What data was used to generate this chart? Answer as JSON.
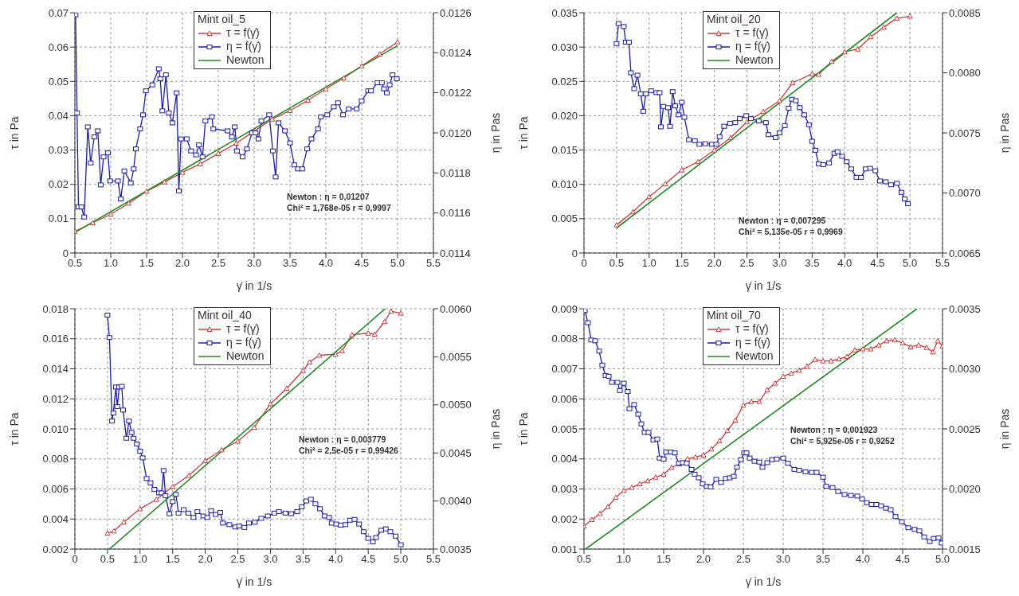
{
  "chart_data": [
    {
      "type": "line",
      "legend_title": "Mint oil_5",
      "xlabel": "γ̇ in 1/s",
      "ylabel": "τ in Pa",
      "y2label": "η in Pas",
      "grid": true,
      "legend": "top",
      "xlim": [
        0.5,
        5.5
      ],
      "xticks": [
        0.5,
        {
          "value": 1,
          "label": "1.0"
        },
        1.5,
        {
          "value": 2,
          "label": "2.0"
        },
        2.5,
        {
          "value": 3,
          "label": "3.0"
        },
        3.5,
        {
          "value": 4,
          "label": "4.0"
        },
        4.5,
        {
          "value": 5,
          "label": "5.0"
        },
        5.5
      ],
      "ylim": [
        0,
        0.07
      ],
      "yticks": [
        0,
        0.01,
        0.02,
        0.03,
        0.04,
        0.05,
        0.06,
        0.07
      ],
      "y2lim": [
        0.0114,
        0.0126
      ],
      "y2ticks": [
        0.0114,
        0.0116,
        0.0118,
        {
          "value": 0.012,
          "label": "0.0120"
        },
        0.0122,
        0.0124,
        0.0126
      ],
      "annotations": [
        "Newton : η = 0,01207",
        "Chi² = 1,768e-05 r = 0,9997"
      ],
      "series": [
        {
          "name": "τ = f(γ̇)",
          "color": "#d03a3a",
          "marker": "triangle",
          "x": [
            0.5,
            0.75,
            1.0,
            1.25,
            1.5,
            1.75,
            2.0,
            2.25,
            2.5,
            2.75,
            3.0,
            3.25,
            3.5,
            3.75,
            4.0,
            4.25,
            4.5,
            4.75,
            5.0
          ],
          "values": [
            0.0063,
            0.0088,
            0.0113,
            0.0145,
            0.018,
            0.0207,
            0.0235,
            0.026,
            0.029,
            0.032,
            0.0355,
            0.039,
            0.0415,
            0.0445,
            0.0478,
            0.051,
            0.0545,
            0.058,
            0.0615
          ]
        },
        {
          "name": "η = f(γ̇)",
          "color": "#1c1ca8",
          "marker": "square",
          "axis": "y2",
          "x": [
            0.51,
            0.53,
            0.55,
            0.59,
            0.63,
            0.68,
            0.72,
            0.77,
            0.82,
            0.86,
            0.9,
            0.96,
            0.99,
            1.1,
            1.14,
            1.19,
            1.28,
            1.32,
            1.35,
            1.41,
            1.45,
            1.49,
            1.58,
            1.67,
            1.69,
            1.72,
            1.77,
            1.81,
            1.86,
            1.92,
            1.95,
            1.98,
            2.06,
            2.12,
            2.19,
            2.23,
            2.28,
            2.32,
            2.41,
            2.43,
            2.63,
            2.69,
            2.73,
            2.76,
            2.84,
            2.9,
            2.97,
            3.02,
            3.06,
            3.1,
            3.21,
            3.26,
            3.3,
            3.34,
            3.43,
            3.5,
            3.56,
            3.61,
            3.67,
            3.74,
            3.8,
            3.89,
            3.93,
            4.02,
            4.11,
            4.17,
            4.24,
            4.32,
            4.43,
            4.5,
            4.59,
            4.63,
            4.72,
            4.78,
            4.81,
            4.85,
            4.89,
            4.93,
            4.99
          ],
          "values": [
            0.01259,
            0.0121,
            0.01163,
            0.01163,
            0.01158,
            0.01203,
            0.01185,
            0.01198,
            0.01201,
            0.01174,
            0.01188,
            0.0119,
            0.01176,
            0.01176,
            0.01167,
            0.01181,
            0.01175,
            0.01182,
            0.01192,
            0.01202,
            0.01209,
            0.01221,
            0.01224,
            0.01232,
            0.01227,
            0.01211,
            0.01229,
            0.0121,
            0.01205,
            0.0122,
            0.01171,
            0.01197,
            0.01197,
            0.01191,
            0.01189,
            0.01194,
            0.01188,
            0.01206,
            0.01208,
            0.01202,
            0.01201,
            0.01198,
            0.01203,
            0.01191,
            0.01188,
            0.01192,
            0.012,
            0.012,
            0.01197,
            0.01206,
            0.01209,
            0.01191,
            0.01178,
            0.01205,
            0.01201,
            0.01195,
            0.01184,
            0.01182,
            0.01182,
            0.01192,
            0.01197,
            0.01202,
            0.01208,
            0.01209,
            0.01213,
            0.01215,
            0.01209,
            0.01212,
            0.01212,
            0.01216,
            0.01221,
            0.01221,
            0.01225,
            0.01225,
            0.01222,
            0.0122,
            0.01224,
            0.01229,
            0.01227
          ]
        },
        {
          "name": "Newton",
          "color": "#1f8a1f",
          "marker": "none",
          "x": [
            0.5,
            5.0
          ],
          "values": [
            0.006,
            0.0604
          ]
        }
      ]
    },
    {
      "type": "line",
      "legend_title": "Mint oil_20",
      "xlabel": "γ̇ in 1/s",
      "ylabel": "τ in Pa",
      "y2label": "η in Pas",
      "grid": true,
      "legend": "top",
      "xlim": [
        0,
        5.5
      ],
      "xticks": [
        0,
        0.5,
        {
          "value": 1,
          "label": "1.0"
        },
        1.5,
        {
          "value": 2,
          "label": "2.0"
        },
        2.5,
        {
          "value": 3,
          "label": "3.0"
        },
        3.5,
        {
          "value": 4,
          "label": "4.0"
        },
        4.5,
        {
          "value": 5,
          "label": "5.0"
        },
        5.5
      ],
      "ylim": [
        0,
        0.035
      ],
      "yticks": [
        0,
        0.005,
        {
          "value": 0.01,
          "label": "0.010"
        },
        0.015,
        {
          "value": 0.02,
          "label": "0.020"
        },
        0.025,
        {
          "value": 0.03,
          "label": "0.030"
        },
        0.035
      ],
      "y2lim": [
        0.0065,
        0.0085
      ],
      "y2ticks": [
        0.0065,
        {
          "value": 0.007,
          "label": "0.0070"
        },
        0.0075,
        {
          "value": 0.008,
          "label": "0.0080"
        },
        0.0085
      ],
      "annotations": [
        "Newton : η = 0,007295",
        "Chi² = 5,135e-05 r = 0,9969"
      ],
      "series": [
        {
          "name": "τ = f(γ̇)",
          "color": "#d03a3a",
          "marker": "triangle",
          "x": [
            0.5,
            0.75,
            1.0,
            1.25,
            1.5,
            1.75,
            2.0,
            2.25,
            2.5,
            2.75,
            3.0,
            3.2,
            3.5,
            3.6,
            3.8,
            4.0,
            4.2,
            4.4,
            4.6,
            4.8,
            5.0
          ],
          "values": [
            0.0041,
            0.006,
            0.0082,
            0.0101,
            0.0121,
            0.0133,
            0.015,
            0.0168,
            0.0191,
            0.0206,
            0.0222,
            0.0248,
            0.0261,
            0.026,
            0.0279,
            0.0293,
            0.0297,
            0.0315,
            0.0329,
            0.0342,
            0.0345
          ]
        },
        {
          "name": "η = f(γ̇)",
          "color": "#1c1ca8",
          "marker": "square",
          "axis": "y2",
          "x": [
            0.5,
            0.53,
            0.61,
            0.64,
            0.69,
            0.72,
            0.77,
            0.82,
            0.87,
            0.91,
            0.95,
            1.03,
            1.11,
            1.16,
            1.18,
            1.22,
            1.29,
            1.32,
            1.36,
            1.4,
            1.45,
            1.5,
            1.54,
            1.61,
            1.7,
            1.77,
            1.86,
            1.96,
            2.03,
            2.08,
            2.15,
            2.24,
            2.32,
            2.39,
            2.49,
            2.56,
            2.68,
            2.79,
            2.83,
            2.94,
            3.0,
            3.08,
            3.14,
            3.19,
            3.25,
            3.31,
            3.38,
            3.45,
            3.5,
            3.55,
            3.6,
            3.67,
            3.76,
            3.84,
            3.89,
            3.96,
            4.03,
            4.1,
            4.18,
            4.25,
            4.32,
            4.39,
            4.47,
            4.54,
            4.63,
            4.71,
            4.8,
            4.87,
            4.92,
            4.97
          ],
          "values": [
            0.008243,
            0.00841,
            0.008385,
            0.008255,
            0.008255,
            0.008,
            0.007868,
            0.00798,
            0.007825,
            0.00768,
            0.007825,
            0.00785,
            0.007835,
            0.007835,
            0.00755,
            0.00772,
            0.00771,
            0.007555,
            0.007843,
            0.007725,
            0.00765,
            0.007755,
            0.00763,
            0.007443,
            0.007435,
            0.007405,
            0.00741,
            0.007405,
            0.007405,
            0.007468,
            0.007555,
            0.00758,
            0.007585,
            0.007618,
            0.007643,
            0.007618,
            0.0076,
            0.007585,
            0.007485,
            0.00746,
            0.0075,
            0.00756,
            0.007705,
            0.00778,
            0.007768,
            0.00771,
            0.00765,
            0.007568,
            0.00743,
            0.007355,
            0.007243,
            0.007235,
            0.00725,
            0.00733,
            0.007343,
            0.007305,
            0.00726,
            0.0072,
            0.00713,
            0.00713,
            0.0072,
            0.007205,
            0.007185,
            0.0071,
            0.007093,
            0.007068,
            0.00708,
            0.007005,
            0.00695,
            0.00691
          ]
        },
        {
          "name": "Newton",
          "color": "#1f8a1f",
          "marker": "none",
          "x": [
            0.5,
            4.8
          ],
          "values": [
            0.00365,
            0.035
          ]
        }
      ]
    },
    {
      "type": "line",
      "legend_title": "Mint oil_40",
      "xlabel": "γ̇ in 1/s",
      "ylabel": "τ in Pa",
      "y2label": "η in Pas",
      "grid": true,
      "legend": "top",
      "xlim": [
        0,
        5.5
      ],
      "xticks": [
        0,
        0.5,
        {
          "value": 1,
          "label": "1.0"
        },
        1.5,
        {
          "value": 2,
          "label": "2.0"
        },
        2.5,
        {
          "value": 3,
          "label": "3.0"
        },
        3.5,
        {
          "value": 4,
          "label": "4.0"
        },
        4.5,
        {
          "value": 5,
          "label": "5.0"
        },
        5.5
      ],
      "ylim": [
        0.002,
        0.018
      ],
      "yticks": [
        0.002,
        0.004,
        0.006,
        0.008,
        {
          "value": 0.01,
          "label": "0.010"
        },
        0.012,
        0.014,
        0.016,
        0.018
      ],
      "y2lim": [
        0.0035,
        0.006
      ],
      "y2ticks": [
        0.0035,
        {
          "value": 0.004,
          "label": "0.0040"
        },
        0.0045,
        {
          "value": 0.005,
          "label": "0.0050"
        },
        0.0055,
        {
          "value": 0.006,
          "label": "0.0060"
        }
      ],
      "annotations": [
        "Newton : η = 0,003779",
        "Chi² = 2,5e-05 r = 0,99426"
      ],
      "series": [
        {
          "name": "τ = f(γ̇)",
          "color": "#d03a3a",
          "marker": "triangle",
          "x": [
            0.5,
            0.6,
            0.75,
            1.0,
            1.25,
            1.5,
            1.75,
            2.0,
            2.25,
            2.5,
            2.75,
            3.0,
            3.25,
            3.5,
            3.6,
            3.75,
            4.0,
            4.1,
            4.25,
            4.5,
            4.6,
            4.75,
            4.85,
            5.0
          ],
          "values": [
            0.00305,
            0.0032,
            0.0038,
            0.00468,
            0.0053,
            0.00616,
            0.0069,
            0.00788,
            0.0086,
            0.00918,
            0.0101,
            0.01167,
            0.0127,
            0.01388,
            0.01445,
            0.0149,
            0.01497,
            0.0152,
            0.01627,
            0.01637,
            0.0163,
            0.01714,
            0.01784,
            0.0177
          ]
        },
        {
          "name": "η = f(γ̇)",
          "color": "#1c1ca8",
          "marker": "square",
          "axis": "y2",
          "x": [
            0.5,
            0.53,
            0.57,
            0.59,
            0.63,
            0.65,
            0.68,
            0.72,
            0.74,
            0.79,
            0.83,
            0.87,
            0.9,
            0.95,
            1.0,
            1.04,
            1.1,
            1.16,
            1.22,
            1.29,
            1.33,
            1.36,
            1.39,
            1.45,
            1.5,
            1.55,
            1.59,
            1.67,
            1.74,
            1.82,
            1.88,
            1.97,
            2.03,
            2.09,
            2.16,
            2.23,
            2.27,
            2.37,
            2.46,
            2.52,
            2.6,
            2.67,
            2.76,
            2.86,
            2.96,
            3.06,
            3.13,
            3.23,
            3.32,
            3.41,
            3.48,
            3.55,
            3.62,
            3.69,
            3.76,
            3.83,
            3.9,
            3.94,
            4.01,
            4.08,
            4.15,
            4.22,
            4.29,
            4.36,
            4.43,
            4.5,
            4.57,
            4.62,
            4.7,
            4.77,
            4.84,
            4.92,
            5.0
          ],
          "values": [
            0.005934,
            0.0057,
            0.004832,
            0.004916,
            0.005186,
            0.004982,
            0.005186,
            0.005192,
            0.004946,
            0.004653,
            0.004832,
            0.004713,
            0.004653,
            0.004593,
            0.004518,
            0.004449,
            0.004234,
            0.004189,
            0.00412,
            0.004084,
            0.004084,
            0.004317,
            0.004054,
            0.003868,
            0.003994,
            0.004069,
            0.003874,
            0.00391,
            0.003874,
            0.003829,
            0.003889,
            0.003844,
            0.003829,
            0.003898,
            0.00386,
            0.00388,
            0.00377,
            0.003754,
            0.00373,
            0.00374,
            0.003725,
            0.00377,
            0.003778,
            0.00382,
            0.003844,
            0.003874,
            0.003889,
            0.003874,
            0.003868,
            0.003889,
            0.00394,
            0.004,
            0.004018,
            0.00397,
            0.003919,
            0.003844,
            0.003829,
            0.00377,
            0.00376,
            0.003749,
            0.003754,
            0.0038,
            0.003808,
            0.00376,
            0.00368,
            0.003611,
            0.003575,
            0.00362,
            0.003695,
            0.00371,
            0.00368,
            0.003635,
            0.003545
          ]
        },
        {
          "name": "Newton",
          "color": "#1f8a1f",
          "marker": "none",
          "x": [
            0.53,
            4.76
          ],
          "values": [
            0.002,
            0.018
          ]
        }
      ]
    },
    {
      "type": "line",
      "legend_title": "Mint oil_70",
      "xlabel": "γ̇ in 1/s",
      "ylabel": "τ in Pa",
      "y2label": "η in Pas",
      "grid": true,
      "legend": "top",
      "xlim": [
        0.5,
        5.0
      ],
      "xticks": [
        0.5,
        {
          "value": 1,
          "label": "1.0"
        },
        1.5,
        {
          "value": 2,
          "label": "2.0"
        },
        2.5,
        {
          "value": 3,
          "label": "3.0"
        },
        3.5,
        {
          "value": 4,
          "label": "4.0"
        },
        4.5,
        {
          "value": 5,
          "label": "5.0"
        }
      ],
      "ylim": [
        0.001,
        0.009
      ],
      "yticks": [
        0.001,
        0.002,
        0.003,
        0.004,
        0.005,
        0.006,
        0.007,
        0.008,
        0.009
      ],
      "y2lim": [
        0.0015,
        0.0035
      ],
      "y2ticks": [
        0.0015,
        {
          "value": 0.002,
          "label": "0.0020"
        },
        0.0025,
        {
          "value": 0.003,
          "label": "0.0030"
        },
        0.0035
      ],
      "annotations": [
        "Newton : η = 0,001923",
        "Chi² = 5,925e-05 r = 0,9252"
      ],
      "series": [
        {
          "name": "τ = f(γ̇)",
          "color": "#d03a3a",
          "marker": "triangle",
          "x": [
            0.5,
            0.6,
            0.7,
            0.8,
            0.9,
            1.0,
            1.1,
            1.2,
            1.3,
            1.4,
            1.5,
            1.6,
            1.7,
            1.8,
            1.9,
            2.0,
            2.1,
            2.2,
            2.3,
            2.4,
            2.5,
            2.6,
            2.7,
            2.8,
            2.9,
            3.0,
            3.1,
            3.2,
            3.3,
            3.4,
            3.5,
            3.6,
            3.7,
            3.8,
            3.9,
            4.0,
            4.1,
            4.2,
            4.3,
            4.4,
            4.5,
            4.6,
            4.7,
            4.8,
            4.88,
            4.94,
            5.0
          ],
          "values": [
            0.00176,
            0.00198,
            0.00218,
            0.00241,
            0.00272,
            0.00295,
            0.00305,
            0.00317,
            0.00327,
            0.00339,
            0.00349,
            0.00372,
            0.00383,
            0.004,
            0.00406,
            0.00413,
            0.00433,
            0.0046,
            0.00494,
            0.00529,
            0.00579,
            0.00591,
            0.00591,
            0.0063,
            0.00652,
            0.00675,
            0.00685,
            0.00695,
            0.00708,
            0.00731,
            0.00726,
            0.00726,
            0.00733,
            0.00741,
            0.00763,
            0.00766,
            0.00766,
            0.00779,
            0.00793,
            0.00796,
            0.00786,
            0.00773,
            0.00779,
            0.00771,
            0.00756,
            0.00793,
            0.00776
          ]
        },
        {
          "name": "η = f(γ̇)",
          "color": "#1c1ca8",
          "marker": "square",
          "axis": "y2",
          "x": [
            0.51,
            0.55,
            0.59,
            0.64,
            0.69,
            0.73,
            0.77,
            0.81,
            0.85,
            0.92,
            0.95,
            1.0,
            1.05,
            1.07,
            1.13,
            1.18,
            1.22,
            1.26,
            1.31,
            1.37,
            1.42,
            1.45,
            1.5,
            1.53,
            1.59,
            1.64,
            1.69,
            1.74,
            1.79,
            1.85,
            1.89,
            1.94,
            1.99,
            2.04,
            2.09,
            2.16,
            2.22,
            2.28,
            2.33,
            2.38,
            2.42,
            2.47,
            2.51,
            2.54,
            2.58,
            2.64,
            2.7,
            2.74,
            2.8,
            2.86,
            2.92,
            3.0,
            3.06,
            3.14,
            3.2,
            3.28,
            3.36,
            3.42,
            3.5,
            3.54,
            3.62,
            3.69,
            3.77,
            3.85,
            3.93,
            3.99,
            4.05,
            4.11,
            4.17,
            4.23,
            4.29,
            4.35,
            4.41,
            4.49,
            4.57,
            4.65,
            4.71,
            4.77,
            4.84,
            4.89,
            4.95,
            4.99
          ],
          "values": [
            0.003485,
            0.003384,
            0.00324,
            0.003233,
            0.003147,
            0.003031,
            0.002945,
            0.002938,
            0.002887,
            0.002887,
            0.002819,
            0.00288,
            0.002811,
            0.002668,
            0.002703,
            0.002622,
            0.002542,
            0.002471,
            0.002471,
            0.002408,
            0.002416,
            0.002257,
            0.002249,
            0.002307,
            0.002307,
            0.0023,
            0.002214,
            0.002219,
            0.002214,
            0.002163,
            0.002123,
            0.002093,
            0.002042,
            0.002022,
            0.002017,
            0.00208,
            0.002055,
            0.002088,
            0.002093,
            0.002105,
            0.002181,
            0.002244,
            0.0023,
            0.0023,
            0.002257,
            0.002231,
            0.002224,
            0.002181,
            0.002219,
            0.002244,
            0.002249,
            0.002257,
            0.002214,
            0.002163,
            0.002156,
            0.002143,
            0.002138,
            0.002138,
            0.002098,
            0.002022,
            0.002012,
            0.001979,
            0.001954,
            0.001946,
            0.001941,
            0.001916,
            0.001886,
            0.001871,
            0.001871,
            0.00186,
            0.00184,
            0.001828,
            0.00177,
            0.001727,
            0.001677,
            0.001664,
            0.001651,
            0.001601,
            0.001563,
            0.001588,
            0.001593,
            0.00155
          ]
        },
        {
          "name": "Newton",
          "color": "#1f8a1f",
          "marker": "none",
          "x": [
            0.52,
            4.68
          ],
          "values": [
            0.001,
            0.009
          ]
        }
      ]
    }
  ]
}
